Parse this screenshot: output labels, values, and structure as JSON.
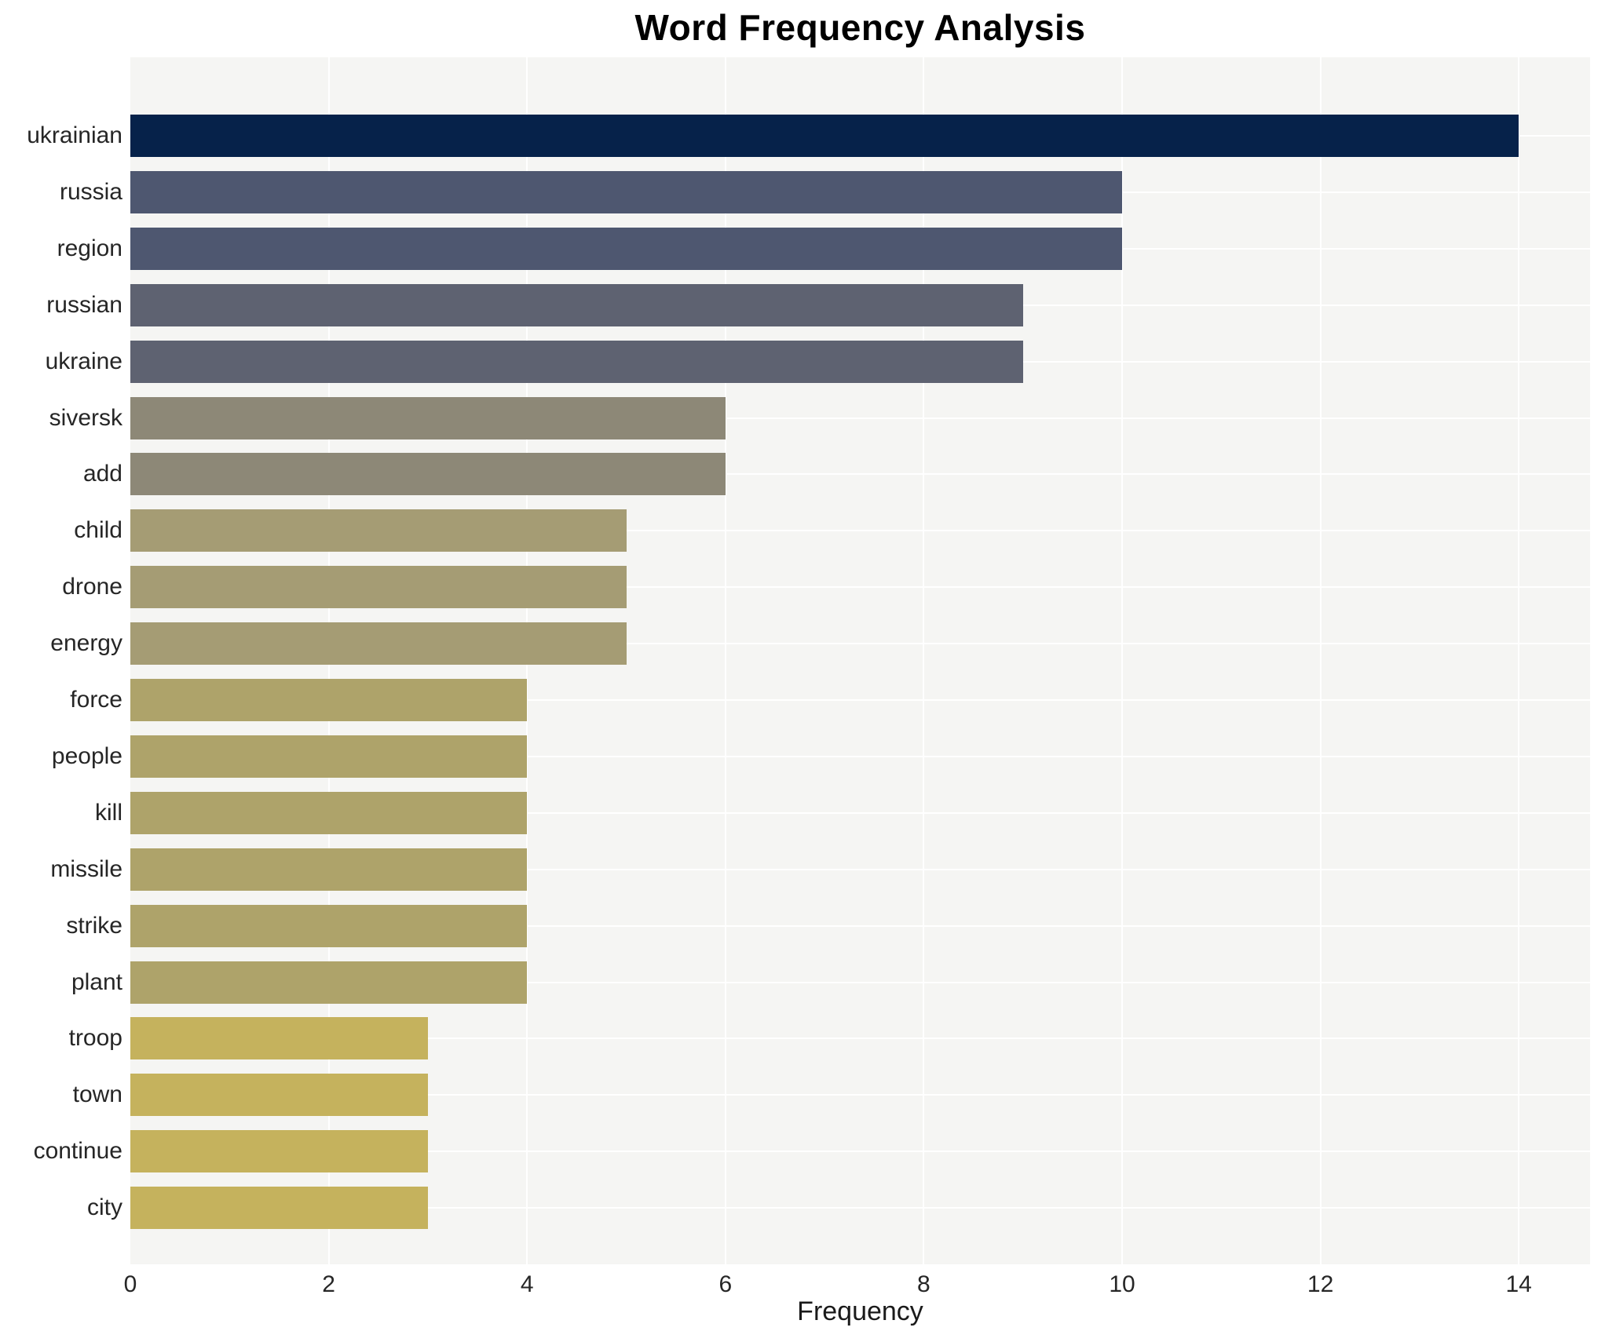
{
  "chart_data": {
    "type": "bar",
    "orientation": "horizontal",
    "title": "Word Frequency Analysis",
    "xlabel": "Frequency",
    "ylabel": "",
    "categories": [
      "ukrainian",
      "russia",
      "region",
      "russian",
      "ukraine",
      "siversk",
      "add",
      "child",
      "drone",
      "energy",
      "force",
      "people",
      "kill",
      "missile",
      "strike",
      "plant",
      "troop",
      "town",
      "continue",
      "city"
    ],
    "values": [
      14,
      10,
      10,
      9,
      9,
      6,
      6,
      5,
      5,
      5,
      4,
      4,
      4,
      4,
      4,
      4,
      3,
      3,
      3,
      3
    ],
    "bar_colors": [
      "#06224a",
      "#4e5770",
      "#4e5770",
      "#5e6271",
      "#5e6271",
      "#8d8877",
      "#8d8877",
      "#a59c74",
      "#a59c74",
      "#a59c74",
      "#aea36a",
      "#aea36a",
      "#aea36a",
      "#aea36a",
      "#aea36a",
      "#aea36a",
      "#c5b25d",
      "#c5b25d",
      "#c5b25d",
      "#c5b25d"
    ],
    "xlim": [
      0,
      14.7
    ],
    "xticks": [
      0,
      2,
      4,
      6,
      8,
      10,
      12,
      14
    ],
    "grid": true,
    "legend": "none",
    "colors": {
      "plot_background": "#f5f5f3",
      "grid_color": "#ffffff",
      "tick_label_color": "#262626",
      "title_color": "#000000"
    }
  }
}
